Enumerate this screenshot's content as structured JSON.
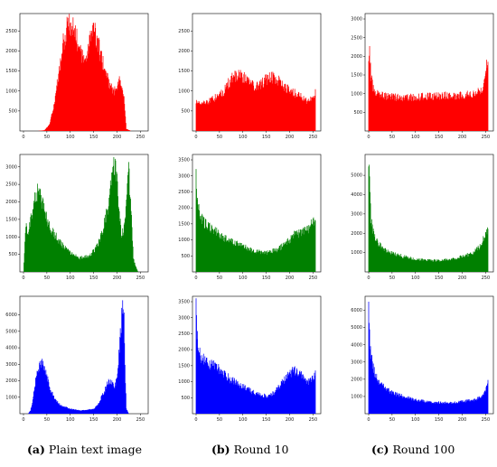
{
  "colors": {
    "red": "#ff0000",
    "green": "#008000",
    "blue": "#0000ff",
    "axis": "#000000"
  },
  "captions": [
    {
      "letter": "(a)",
      "text": "Plain text image"
    },
    {
      "letter": "(b)",
      "text": "Round 10"
    },
    {
      "letter": "(c)",
      "text": "Round 100"
    }
  ],
  "chart_data": [
    {
      "type": "area",
      "channel": "red",
      "column": "Plain text image",
      "xlim": [
        0,
        255
      ],
      "ylim": [
        0,
        2800
      ],
      "x_ticks": [
        0,
        50,
        100,
        150,
        200,
        250
      ],
      "y_ticks": [
        500,
        1000,
        1500,
        2000,
        2500
      ],
      "x": [
        0,
        30,
        45,
        55,
        65,
        75,
        85,
        95,
        100,
        110,
        120,
        130,
        140,
        150,
        155,
        165,
        175,
        185,
        195,
        205,
        215,
        220,
        230,
        255
      ],
      "y": [
        0,
        0,
        20,
        150,
        600,
        1400,
        2200,
        2650,
        2700,
        2500,
        2000,
        1700,
        2200,
        2550,
        2400,
        1900,
        1500,
        1100,
        1000,
        1300,
        800,
        50,
        0,
        0
      ]
    },
    {
      "type": "area",
      "channel": "red",
      "column": "Round 10",
      "xlim": [
        0,
        255
      ],
      "ylim": [
        0,
        2800
      ],
      "x_ticks": [
        0,
        50,
        100,
        150,
        200,
        250
      ],
      "y_ticks": [
        500,
        1000,
        1500,
        2000,
        2500
      ],
      "x": [
        0,
        10,
        30,
        50,
        60,
        70,
        80,
        90,
        100,
        110,
        120,
        130,
        140,
        150,
        160,
        170,
        180,
        190,
        200,
        210,
        220,
        230,
        240,
        250,
        255
      ],
      "y": [
        750,
        700,
        750,
        900,
        1000,
        1200,
        1350,
        1400,
        1350,
        1300,
        1150,
        1100,
        1200,
        1300,
        1350,
        1300,
        1250,
        1100,
        1000,
        950,
        900,
        800,
        750,
        800,
        950
      ]
    },
    {
      "type": "area",
      "channel": "red",
      "column": "Round 100",
      "xlim": [
        0,
        255
      ],
      "ylim": [
        0,
        3000
      ],
      "x_ticks": [
        0,
        50,
        100,
        150,
        200,
        250
      ],
      "y_ticks": [
        500,
        1000,
        1500,
        2000,
        2500,
        3000
      ],
      "x": [
        0,
        2,
        5,
        10,
        20,
        30,
        50,
        100,
        150,
        200,
        230,
        240,
        245,
        250,
        253,
        255
      ],
      "y": [
        2000,
        2050,
        1500,
        1100,
        1000,
        950,
        900,
        900,
        950,
        950,
        1000,
        1100,
        1200,
        1500,
        1850,
        1700
      ]
    },
    {
      "type": "area",
      "channel": "green",
      "column": "Plain text image",
      "xlim": [
        0,
        255
      ],
      "ylim": [
        0,
        3200
      ],
      "x_ticks": [
        0,
        50,
        100,
        150,
        200,
        250
      ],
      "y_ticks": [
        500,
        1000,
        1500,
        2000,
        2500,
        3000
      ],
      "x": [
        0,
        5,
        10,
        15,
        20,
        25,
        30,
        35,
        40,
        50,
        60,
        80,
        100,
        120,
        140,
        150,
        160,
        170,
        180,
        185,
        190,
        195,
        200,
        205,
        210,
        215,
        220,
        225,
        230,
        235,
        240,
        245,
        255
      ],
      "y": [
        0,
        1400,
        1000,
        1500,
        1800,
        2100,
        2300,
        2200,
        2000,
        1500,
        1200,
        800,
        550,
        400,
        450,
        600,
        800,
        1200,
        1800,
        2400,
        2900,
        3050,
        2600,
        1600,
        1000,
        1300,
        2000,
        2900,
        1800,
        400,
        150,
        0,
        0
      ]
    },
    {
      "type": "area",
      "channel": "green",
      "column": "Round 10",
      "xlim": [
        0,
        255
      ],
      "ylim": [
        0,
        3500
      ],
      "x_ticks": [
        0,
        50,
        100,
        150,
        200,
        250
      ],
      "y_ticks": [
        500,
        1000,
        1500,
        2000,
        2500,
        3000,
        3500
      ],
      "x": [
        0,
        2,
        5,
        10,
        20,
        30,
        40,
        50,
        75,
        100,
        125,
        150,
        175,
        200,
        210,
        220,
        230,
        240,
        250,
        255
      ],
      "y": [
        3300,
        2400,
        2000,
        1700,
        1500,
        1400,
        1300,
        1150,
        950,
        800,
        650,
        600,
        700,
        1000,
        1150,
        1200,
        1250,
        1300,
        1600,
        1500
      ]
    },
    {
      "type": "area",
      "channel": "green",
      "column": "Round 100",
      "xlim": [
        0,
        255
      ],
      "ylim": [
        0,
        5800
      ],
      "x_ticks": [
        0,
        50,
        100,
        150,
        200,
        250
      ],
      "y_ticks": [
        1000,
        2000,
        3000,
        4000,
        5000
      ],
      "x": [
        0,
        2,
        5,
        10,
        20,
        30,
        50,
        75,
        100,
        125,
        150,
        175,
        200,
        225,
        240,
        250,
        255
      ],
      "y": [
        5500,
        4500,
        2800,
        2000,
        1500,
        1200,
        950,
        800,
        650,
        600,
        600,
        650,
        800,
        1000,
        1400,
        2000,
        2100
      ]
    },
    {
      "type": "area",
      "channel": "blue",
      "column": "Plain text image",
      "xlim": [
        0,
        255
      ],
      "ylim": [
        0,
        6800
      ],
      "x_ticks": [
        0,
        50,
        100,
        150,
        200,
        250
      ],
      "y_ticks": [
        1000,
        2000,
        3000,
        4000,
        5000,
        6000
      ],
      "x": [
        0,
        10,
        15,
        20,
        25,
        30,
        35,
        40,
        45,
        50,
        55,
        60,
        70,
        80,
        100,
        120,
        140,
        150,
        160,
        170,
        180,
        185,
        190,
        195,
        200,
        205,
        210,
        212,
        215,
        218,
        220,
        225,
        255
      ],
      "y": [
        0,
        0,
        200,
        800,
        1800,
        2700,
        3000,
        3100,
        2800,
        2300,
        1800,
        1300,
        800,
        500,
        300,
        200,
        250,
        300,
        600,
        1200,
        1800,
        2000,
        1900,
        1700,
        2200,
        4000,
        5800,
        6500,
        5500,
        2000,
        300,
        0,
        0
      ]
    },
    {
      "type": "area",
      "channel": "blue",
      "column": "Round 10",
      "xlim": [
        0,
        255
      ],
      "ylim": [
        0,
        3500
      ],
      "x_ticks": [
        0,
        50,
        100,
        150,
        200,
        250
      ],
      "y_ticks": [
        500,
        1000,
        1500,
        2000,
        2500,
        3000,
        3500
      ],
      "x": [
        0,
        2,
        5,
        10,
        15,
        20,
        30,
        40,
        50,
        60,
        75,
        100,
        125,
        150,
        160,
        170,
        180,
        190,
        200,
        210,
        220,
        230,
        240,
        250,
        255
      ],
      "y": [
        3500,
        2500,
        2000,
        1750,
        1700,
        1600,
        1550,
        1500,
        1400,
        1250,
        1050,
        850,
        650,
        550,
        600,
        700,
        900,
        1100,
        1250,
        1350,
        1300,
        1150,
        1000,
        1100,
        1300
      ]
    },
    {
      "type": "area",
      "channel": "blue",
      "column": "Round 100",
      "xlim": [
        0,
        255
      ],
      "ylim": [
        0,
        6500
      ],
      "x_ticks": [
        0,
        50,
        100,
        150,
        200,
        250
      ],
      "y_ticks": [
        1000,
        2000,
        3000,
        4000,
        5000,
        6000
      ],
      "x": [
        0,
        2,
        5,
        10,
        15,
        20,
        30,
        40,
        50,
        75,
        100,
        125,
        150,
        175,
        200,
        225,
        240,
        250,
        255
      ],
      "y": [
        6200,
        4500,
        3500,
        2600,
        2200,
        1900,
        1600,
        1400,
        1200,
        1000,
        800,
        700,
        650,
        650,
        700,
        800,
        1000,
        1300,
        1900
      ]
    }
  ]
}
